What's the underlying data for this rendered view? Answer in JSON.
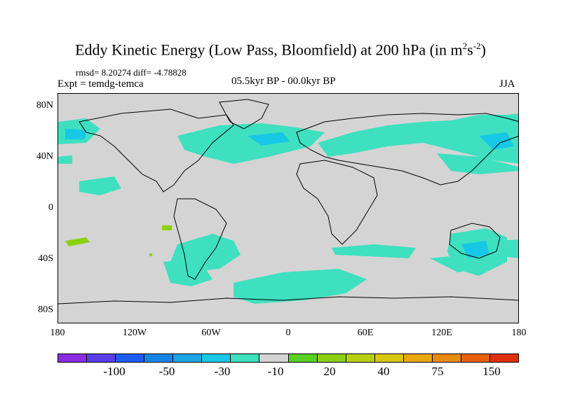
{
  "title": {
    "main": "Eddy Kinetic Energy (Low Pass, Bloomfield) at 200 hPa (in m",
    "sup1": "2",
    "mid": "s",
    "sup2": "-2",
    "end": ")"
  },
  "stats": "rmsd= 8.20274 diff= -4.78828",
  "expt": "Expt = temdg-temca",
  "period": "05.5kyr BP - 00.0kyr BP",
  "season": "JJA",
  "axes": {
    "y_labels": [
      "80N",
      "40N",
      "0",
      "40S",
      "80S"
    ],
    "x_labels": [
      "180",
      "120W",
      "60W",
      "0",
      "60E",
      "120E",
      "180"
    ]
  },
  "colorbar": {
    "colors": [
      "#8a2be2",
      "#5a3ee8",
      "#1f5cf0",
      "#1585e8",
      "#1aa6e4",
      "#16c8e6",
      "#3ee0c0",
      "#d4d4d4",
      "#5ad020",
      "#8cd010",
      "#b6d00a",
      "#d8c80a",
      "#e8a80a",
      "#e88a0a",
      "#e8600a",
      "#e0300a"
    ],
    "labels": [
      "-100",
      "-50",
      "-30",
      "-10",
      "20",
      "40",
      "75",
      "150"
    ]
  },
  "legend_colors": {
    "neutral": "#d4d4d4",
    "cyan": "#3ee0c0",
    "light_blue": "#16c8e6",
    "green": "#8cd010"
  }
}
